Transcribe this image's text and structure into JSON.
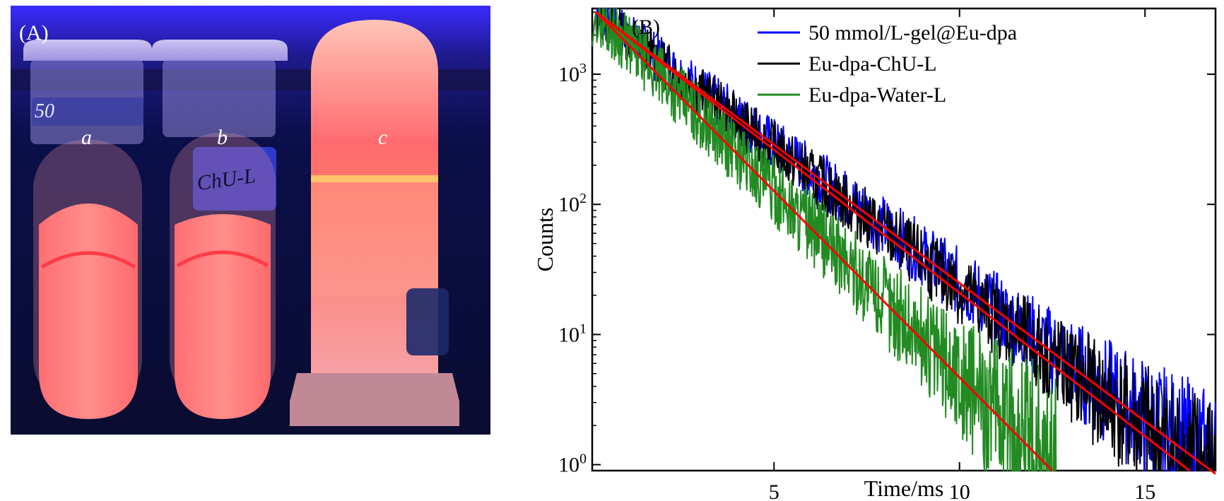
{
  "photo": {
    "panel_label": "(A)",
    "tubes": [
      {
        "label": "a",
        "tag_text": "50"
      },
      {
        "label": "b",
        "tag_text": "ChU-L"
      },
      {
        "label": "c",
        "tag_text": ""
      }
    ],
    "colors": {
      "background": "#0b0f4a",
      "glow": "#ff5a5f",
      "uv": "#3b2bff"
    }
  },
  "chart_data": {
    "type": "line",
    "panel_label": "(B)",
    "title": "",
    "xlabel": "Time/ms",
    "ylabel": "Counts",
    "yscale": "log",
    "xlim": [
      0.1,
      16.9
    ],
    "ylim": [
      0.9,
      3200
    ],
    "xticks": [
      5,
      10,
      15
    ],
    "yticks": [
      {
        "value": 1,
        "base": "10",
        "exp": "0"
      },
      {
        "value": 10,
        "base": "10",
        "exp": "1"
      },
      {
        "value": 100,
        "base": "10",
        "exp": "2"
      },
      {
        "value": 1000,
        "base": "10",
        "exp": "3"
      }
    ],
    "legend_position": "top-right",
    "series": [
      {
        "name": "50 mmol/L-gel@Eu-dpa",
        "color": "#0000ff",
        "peak": 3000,
        "tau_ms": 2.05,
        "noise": 0.18,
        "end_ms": 16.9,
        "seed": 7
      },
      {
        "name": "Eu-dpa-ChU-L",
        "color": "#000000",
        "peak": 3000,
        "tau_ms": 2.0,
        "noise": 0.18,
        "end_ms": 16.9,
        "seed": 13
      },
      {
        "name": "Eu-dpa-Water-L",
        "color": "#228b22",
        "peak": 3000,
        "tau_ms": 1.52,
        "noise": 0.22,
        "end_ms": 12.6,
        "seed": 29
      }
    ],
    "fits": [
      {
        "name": "fit-gel",
        "color": "#ff0000",
        "x0": 0.2,
        "y0": 3000,
        "x1": 16.9,
        "y1": 0.85
      },
      {
        "name": "fit-chu",
        "color": "#ff0000",
        "x0": 0.2,
        "y0": 3000,
        "x1": 16.2,
        "y1": 0.9
      },
      {
        "name": "fit-water",
        "color": "#ff0000",
        "x0": 0.2,
        "y0": 3000,
        "x1": 12.5,
        "y1": 0.9
      }
    ]
  }
}
